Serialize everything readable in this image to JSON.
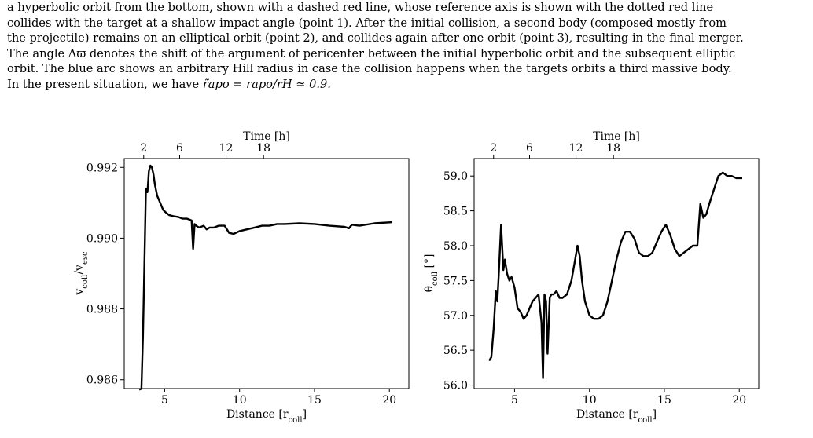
{
  "caption": {
    "lines": [
      "a hyperbolic orbit from the bottom, shown with a dashed red line, whose reference axis is shown with the dotted red line",
      "collides with the target at a shallow impact angle (point 1). After the initial collision, a second body (composed mostly from",
      "the projectile) remains on an elliptical orbit (point 2), and collides again after one orbit (point 3), resulting in the final merger.",
      "The angle Δϖ denotes the shift of the argument of pericenter between the initial hyperbolic orbit and the subsequent elliptic",
      "orbit. The blue arc shows an arbitrary Hill radius in case the collision happens when the targets orbits a third massive body."
    ],
    "last_line_prefix": "In the present situation, we have ",
    "last_line_math": "r̃apo = rapo/rH ≃ 0.9."
  },
  "chart_data": [
    {
      "type": "line",
      "title": "",
      "xlabel": "Distance [r_coll]",
      "ylabel": "v_coll/v_esc",
      "top_axis_label": "Time [h]",
      "top_ticks": [
        {
          "label": "2",
          "at_distance": 3.6
        },
        {
          "label": "6",
          "at_distance": 6.0
        },
        {
          "label": "12",
          "at_distance": 9.1
        },
        {
          "label": "18",
          "at_distance": 11.6
        }
      ],
      "xlim": [
        2.3,
        21.3
      ],
      "ylim": [
        0.98575,
        0.99225
      ],
      "xticks": [
        5,
        10,
        15,
        20
      ],
      "yticks": [
        0.986,
        0.988,
        0.99,
        0.992
      ],
      "ytick_labels": [
        "0.986",
        "0.988",
        "0.990",
        "0.992"
      ],
      "grid": false,
      "series": [
        {
          "x": [
            3.3,
            3.45,
            3.55,
            3.65,
            3.75,
            3.85,
            3.95,
            4.05,
            4.15,
            4.25,
            4.35,
            4.5,
            4.7,
            4.9,
            5.1,
            5.3,
            5.6,
            5.9,
            6.2,
            6.5,
            6.8,
            6.9,
            7.0,
            7.1,
            7.3,
            7.6,
            7.8,
            8.0,
            8.3,
            8.6,
            9.0,
            9.3,
            9.6,
            10.0,
            10.5,
            11.0,
            11.5,
            12.0,
            12.5,
            13.0,
            14.0,
            15.0,
            16.0,
            17.0,
            17.3,
            17.5,
            18.0,
            19.0,
            20.2
          ],
          "y": [
            0.98572,
            0.98575,
            0.9872,
            0.9893,
            0.9914,
            0.9913,
            0.9919,
            0.99205,
            0.992,
            0.9918,
            0.9915,
            0.9912,
            0.991,
            0.9908,
            0.99072,
            0.99065,
            0.99062,
            0.9906,
            0.99055,
            0.99055,
            0.9905,
            0.9897,
            0.9904,
            0.99035,
            0.9903,
            0.99035,
            0.99025,
            0.9903,
            0.9903,
            0.99035,
            0.99035,
            0.99015,
            0.99012,
            0.9902,
            0.99025,
            0.9903,
            0.99035,
            0.99035,
            0.9904,
            0.9904,
            0.99042,
            0.9904,
            0.99035,
            0.99032,
            0.99028,
            0.99038,
            0.99035,
            0.99042,
            0.99045
          ]
        }
      ]
    },
    {
      "type": "line",
      "title": "",
      "xlabel": "Distance [r_coll]",
      "ylabel": "θ_coll [°]",
      "top_axis_label": "Time [h]",
      "top_ticks": [
        {
          "label": "2",
          "at_distance": 3.6
        },
        {
          "label": "6",
          "at_distance": 6.0
        },
        {
          "label": "12",
          "at_distance": 9.1
        },
        {
          "label": "18",
          "at_distance": 11.6
        }
      ],
      "xlim": [
        2.3,
        21.3
      ],
      "ylim": [
        55.95,
        59.25
      ],
      "xticks": [
        5,
        10,
        15,
        20
      ],
      "yticks": [
        56.0,
        56.5,
        57.0,
        57.5,
        58.0,
        58.5,
        59.0
      ],
      "ytick_labels": [
        "56.0",
        "56.5",
        "57.0",
        "57.5",
        "58.0",
        "58.5",
        "59.0"
      ],
      "grid": false,
      "series": [
        {
          "x": [
            3.3,
            3.45,
            3.6,
            3.75,
            3.85,
            3.95,
            4.1,
            4.25,
            4.35,
            4.5,
            4.65,
            4.8,
            5.0,
            5.2,
            5.4,
            5.6,
            5.8,
            6.0,
            6.2,
            6.4,
            6.6,
            6.8,
            6.9,
            7.0,
            7.1,
            7.2,
            7.35,
            7.45,
            7.6,
            7.8,
            8.0,
            8.2,
            8.5,
            8.8,
            9.0,
            9.2,
            9.35,
            9.5,
            9.7,
            10.0,
            10.3,
            10.6,
            10.9,
            11.2,
            11.5,
            11.8,
            12.1,
            12.4,
            12.7,
            13.0,
            13.3,
            13.6,
            13.9,
            14.2,
            14.5,
            14.8,
            15.1,
            15.4,
            15.7,
            16.0,
            16.3,
            16.6,
            16.9,
            17.2,
            17.4,
            17.5,
            17.6,
            17.8,
            18.0,
            18.3,
            18.6,
            18.9,
            19.2,
            19.5,
            19.8,
            20.2
          ],
          "y": [
            56.35,
            56.4,
            56.8,
            57.35,
            57.2,
            57.6,
            58.3,
            57.65,
            57.8,
            57.6,
            57.5,
            57.55,
            57.4,
            57.1,
            57.05,
            56.95,
            57.0,
            57.1,
            57.2,
            57.25,
            57.3,
            56.9,
            56.1,
            57.3,
            57.2,
            56.45,
            57.25,
            57.3,
            57.3,
            57.35,
            57.25,
            57.25,
            57.3,
            57.5,
            57.75,
            58.0,
            57.85,
            57.5,
            57.2,
            57.0,
            56.95,
            56.95,
            57.0,
            57.2,
            57.5,
            57.8,
            58.05,
            58.2,
            58.2,
            58.1,
            57.9,
            57.85,
            57.85,
            57.9,
            58.05,
            58.2,
            58.3,
            58.15,
            57.95,
            57.85,
            57.9,
            57.95,
            58.0,
            58.0,
            58.6,
            58.5,
            58.4,
            58.45,
            58.6,
            58.8,
            59.0,
            59.05,
            59.0,
            59.0,
            58.97,
            58.97
          ]
        }
      ]
    }
  ]
}
